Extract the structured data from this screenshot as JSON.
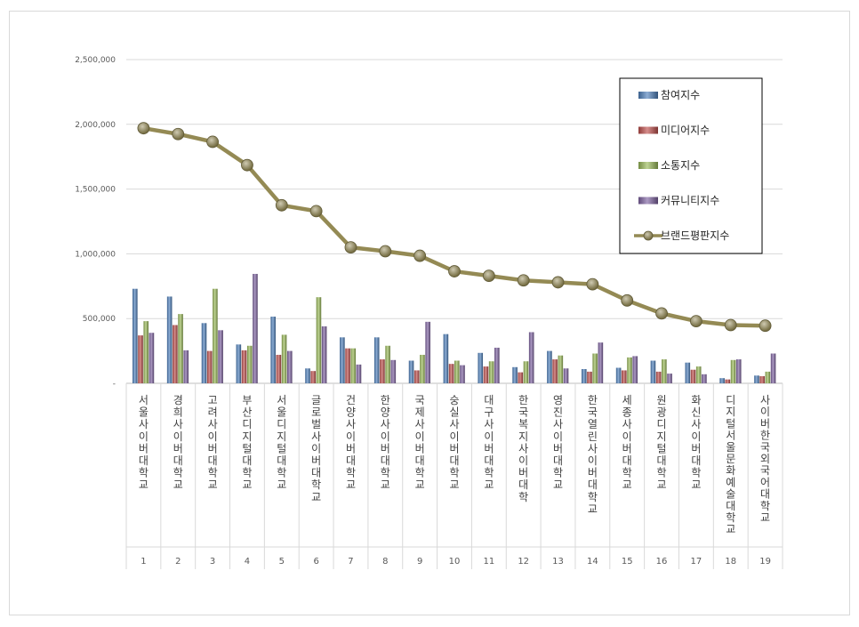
{
  "chart_data": {
    "type": "bar",
    "title": "",
    "xlabel": "",
    "ylabel": "",
    "ylim": [
      0,
      2500000
    ],
    "yticks": [
      {
        "value": 0,
        "label": "-"
      },
      {
        "value": 500000,
        "label": "500,000"
      },
      {
        "value": 1000000,
        "label": "1,000,000"
      },
      {
        "value": 1500000,
        "label": "1,500,000"
      },
      {
        "value": 2000000,
        "label": "2,000,000"
      },
      {
        "value": 2500000,
        "label": "2,500,000"
      }
    ],
    "grid": true,
    "legend_position": "top-right",
    "categories": [
      "서울사이버대학교",
      "경희사이버대학교",
      "고려사이버대학교",
      "부산디지털대학교",
      "서울디지털대학교",
      "글로벌사이버대학교",
      "건양사이버대학교",
      "한양사이버대학교",
      "국제사이버대학교",
      "숭실사이버대학교",
      "대구사이버대학교",
      "한국복지사이버대학",
      "영진사이버대학교",
      "한국열린사이버대학교",
      "세종사이버대학교",
      "원광디지털대학교",
      "화신사이버대학교",
      "디지털서울문화예술대학교",
      "사이버한국외국어대학교"
    ],
    "ranks": [
      "1",
      "2",
      "3",
      "4",
      "5",
      "6",
      "7",
      "8",
      "9",
      "10",
      "11",
      "12",
      "13",
      "14",
      "15",
      "16",
      "17",
      "18",
      "19"
    ],
    "series": [
      {
        "name": "참여지수",
        "type": "bar",
        "color": "#4F81BD",
        "values": [
          730000,
          670000,
          465000,
          300000,
          515000,
          115000,
          355000,
          355000,
          175000,
          380000,
          235000,
          125000,
          250000,
          110000,
          120000,
          175000,
          160000,
          40000,
          60000
        ]
      },
      {
        "name": "미디어지수",
        "type": "bar",
        "color": "#C0504D",
        "values": [
          370000,
          450000,
          250000,
          255000,
          220000,
          95000,
          270000,
          185000,
          100000,
          150000,
          130000,
          85000,
          185000,
          90000,
          100000,
          90000,
          105000,
          30000,
          55000
        ]
      },
      {
        "name": "소통지수",
        "type": "bar",
        "color": "#9BBB59",
        "values": [
          480000,
          535000,
          730000,
          290000,
          375000,
          665000,
          270000,
          290000,
          220000,
          175000,
          170000,
          170000,
          215000,
          230000,
          200000,
          185000,
          130000,
          180000,
          90000
        ]
      },
      {
        "name": "커뮤니티지수",
        "type": "bar",
        "color": "#8064A2",
        "values": [
          390000,
          255000,
          410000,
          845000,
          250000,
          440000,
          145000,
          180000,
          475000,
          140000,
          275000,
          395000,
          115000,
          315000,
          210000,
          75000,
          70000,
          185000,
          230000
        ]
      },
      {
        "name": "브랜드평판지수",
        "type": "line",
        "color": "#948A54",
        "values": [
          1970000,
          1925000,
          1865000,
          1685000,
          1375000,
          1330000,
          1050000,
          1020000,
          985000,
          865000,
          830000,
          795000,
          780000,
          765000,
          640000,
          540000,
          480000,
          450000,
          445000
        ]
      }
    ]
  }
}
